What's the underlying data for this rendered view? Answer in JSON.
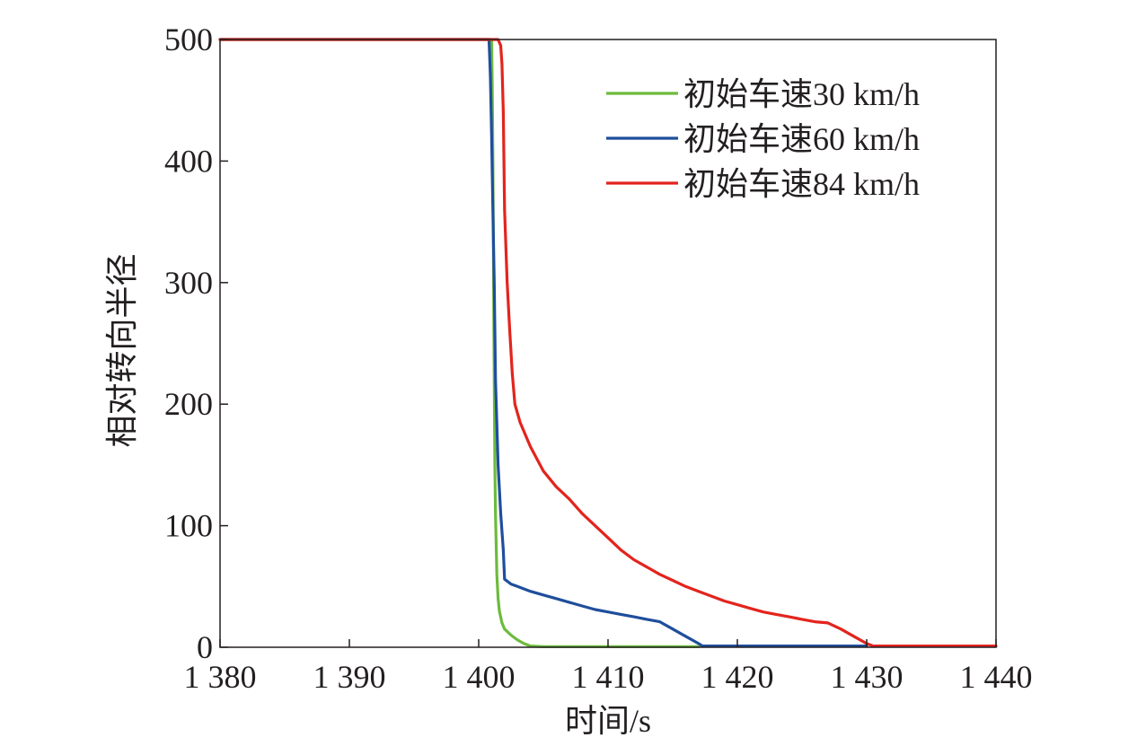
{
  "chart_data": {
    "type": "line",
    "title": "",
    "xlabel": "时间/s",
    "ylabel": "相对转向半径",
    "xlim": [
      1380,
      1440
    ],
    "ylim": [
      0,
      500
    ],
    "x_ticks": [
      1380,
      1390,
      1400,
      1410,
      1420,
      1430,
      1440
    ],
    "x_tick_labels": [
      "1 380",
      "1 390",
      "1 400",
      "1 410",
      "1 420",
      "1 430",
      "1 440"
    ],
    "y_ticks": [
      0,
      100,
      200,
      300,
      400,
      500
    ],
    "y_tick_labels": [
      "0",
      "100",
      "200",
      "300",
      "400",
      "500"
    ],
    "grid": false,
    "legend_position": "top-right",
    "series": [
      {
        "name": "初始车速30 km/h",
        "color": "#6cbb3c",
        "points": [
          [
            1380,
            500
          ],
          [
            1401.0,
            500
          ],
          [
            1401.05,
            460
          ],
          [
            1401.1,
            400
          ],
          [
            1401.15,
            300
          ],
          [
            1401.2,
            220
          ],
          [
            1401.25,
            150
          ],
          [
            1401.3,
            110
          ],
          [
            1401.4,
            60
          ],
          [
            1401.5,
            40
          ],
          [
            1401.6,
            30
          ],
          [
            1401.8,
            20
          ],
          [
            1402.0,
            15
          ],
          [
            1402.5,
            10
          ],
          [
            1403.0,
            6
          ],
          [
            1403.5,
            3
          ],
          [
            1404.0,
            1
          ],
          [
            1405,
            0.5
          ],
          [
            1410,
            0.5
          ],
          [
            1417,
            0.5
          ]
        ]
      },
      {
        "name": "初始车速60 km/h",
        "color": "#1f4e9c",
        "points": [
          [
            1380,
            500
          ],
          [
            1400.8,
            500
          ],
          [
            1400.9,
            470
          ],
          [
            1401.0,
            420
          ],
          [
            1401.1,
            360
          ],
          [
            1401.2,
            300
          ],
          [
            1401.3,
            220
          ],
          [
            1401.5,
            150
          ],
          [
            1401.7,
            110
          ],
          [
            1401.9,
            80
          ],
          [
            1402.0,
            56
          ],
          [
            1402.5,
            52
          ],
          [
            1403.0,
            50
          ],
          [
            1404,
            46
          ],
          [
            1405,
            43
          ],
          [
            1406,
            40
          ],
          [
            1407,
            37
          ],
          [
            1408,
            34
          ],
          [
            1409,
            31
          ],
          [
            1410,
            29
          ],
          [
            1411,
            27
          ],
          [
            1412,
            25
          ],
          [
            1413,
            23
          ],
          [
            1414,
            21
          ],
          [
            1415,
            15
          ],
          [
            1416,
            9
          ],
          [
            1417,
            3
          ],
          [
            1417.3,
            1
          ],
          [
            1420,
            1
          ],
          [
            1425,
            1
          ],
          [
            1430,
            1
          ]
        ]
      },
      {
        "name": "初始车速84 km/h",
        "color": "#e3241d",
        "points": [
          [
            1380,
            500
          ],
          [
            1401.5,
            500
          ],
          [
            1401.7,
            495
          ],
          [
            1401.8,
            480
          ],
          [
            1401.9,
            440
          ],
          [
            1402.0,
            360
          ],
          [
            1402.2,
            300
          ],
          [
            1402.4,
            260
          ],
          [
            1402.6,
            225
          ],
          [
            1402.8,
            200
          ],
          [
            1403.2,
            185
          ],
          [
            1404,
            165
          ],
          [
            1405,
            145
          ],
          [
            1406,
            132
          ],
          [
            1407,
            122
          ],
          [
            1408,
            110
          ],
          [
            1409,
            100
          ],
          [
            1410,
            90
          ],
          [
            1411,
            80
          ],
          [
            1412,
            72
          ],
          [
            1413,
            66
          ],
          [
            1414,
            60
          ],
          [
            1415,
            55
          ],
          [
            1416,
            50
          ],
          [
            1417,
            46
          ],
          [
            1418,
            42
          ],
          [
            1419,
            38
          ],
          [
            1420,
            35
          ],
          [
            1421,
            32
          ],
          [
            1422,
            29
          ],
          [
            1423,
            27
          ],
          [
            1424,
            25
          ],
          [
            1425,
            23
          ],
          [
            1426,
            21
          ],
          [
            1427,
            20
          ],
          [
            1428,
            15
          ],
          [
            1429,
            9
          ],
          [
            1430,
            3
          ],
          [
            1430.5,
            1
          ],
          [
            1435,
            1
          ],
          [
            1440,
            1
          ]
        ]
      }
    ]
  }
}
